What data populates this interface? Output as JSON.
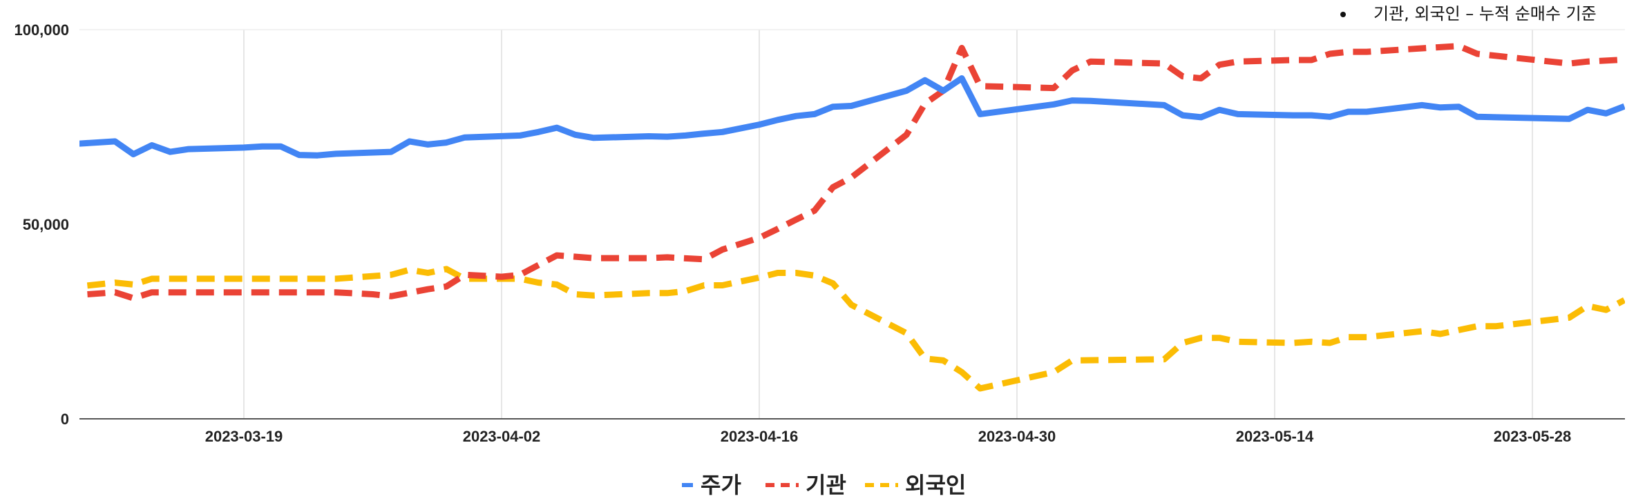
{
  "chart_data": {
    "type": "line",
    "annotation": "기관, 외국인 – 누적 순매수 기준",
    "ylim": [
      0,
      100000
    ],
    "yticks": [
      0,
      50000,
      100000
    ],
    "ytick_labels": [
      "0",
      "50,000",
      "100,000"
    ],
    "xlim": [
      "2023-03-09",
      "2023-06-01"
    ],
    "xticks": [
      "2023-03-19",
      "2023-04-02",
      "2023-04-16",
      "2023-04-30",
      "2023-05-14",
      "2023-05-28"
    ],
    "grid": "vertical",
    "legend_position": "bottom",
    "series": [
      {
        "name": "주가",
        "color": "#4285F4",
        "style": "solid",
        "points": [
          [
            "2023-03-09",
            70400
          ],
          [
            "2023-03-12",
            71300
          ],
          [
            "2023-03-13",
            68000
          ],
          [
            "2023-03-14",
            70300
          ],
          [
            "2023-03-15",
            68600
          ],
          [
            "2023-03-16",
            69300
          ],
          [
            "2023-03-19",
            69700
          ],
          [
            "2023-03-20",
            70000
          ],
          [
            "2023-03-21",
            70000
          ],
          [
            "2023-03-22",
            67800
          ],
          [
            "2023-03-23",
            67700
          ],
          [
            "2023-03-24",
            68100
          ],
          [
            "2023-03-27",
            68600
          ],
          [
            "2023-03-28",
            71300
          ],
          [
            "2023-03-29",
            70500
          ],
          [
            "2023-03-30",
            71000
          ],
          [
            "2023-03-31",
            72300
          ],
          [
            "2023-04-03",
            72800
          ],
          [
            "2023-04-04",
            73700
          ],
          [
            "2023-04-05",
            74800
          ],
          [
            "2023-04-06",
            73000
          ],
          [
            "2023-04-07",
            72200
          ],
          [
            "2023-04-10",
            72600
          ],
          [
            "2023-04-11",
            72500
          ],
          [
            "2023-04-12",
            72800
          ],
          [
            "2023-04-13",
            73300
          ],
          [
            "2023-04-14",
            73700
          ],
          [
            "2023-04-16",
            75600
          ],
          [
            "2023-04-17",
            76800
          ],
          [
            "2023-04-18",
            77800
          ],
          [
            "2023-04-19",
            78300
          ],
          [
            "2023-04-20",
            80200
          ],
          [
            "2023-04-21",
            80400
          ],
          [
            "2023-04-24",
            84300
          ],
          [
            "2023-04-25",
            87000
          ],
          [
            "2023-04-26",
            84300
          ],
          [
            "2023-04-27",
            87500
          ],
          [
            "2023-04-28",
            78300
          ],
          [
            "2023-05-02",
            80800
          ],
          [
            "2023-05-03",
            81800
          ],
          [
            "2023-05-04",
            81700
          ],
          [
            "2023-05-08",
            80600
          ],
          [
            "2023-05-09",
            78000
          ],
          [
            "2023-05-10",
            77500
          ],
          [
            "2023-05-11",
            79400
          ],
          [
            "2023-05-12",
            78300
          ],
          [
            "2023-05-15",
            78000
          ],
          [
            "2023-05-16",
            78000
          ],
          [
            "2023-05-17",
            77600
          ],
          [
            "2023-05-18",
            78900
          ],
          [
            "2023-05-19",
            78900
          ],
          [
            "2023-05-22",
            80600
          ],
          [
            "2023-05-23",
            80000
          ],
          [
            "2023-05-24",
            80200
          ],
          [
            "2023-05-25",
            77600
          ],
          [
            "2023-05-30",
            77100
          ],
          [
            "2023-05-31",
            79400
          ],
          [
            "2023-06-01",
            78500
          ],
          [
            "2023-06-02",
            80300
          ]
        ]
      },
      {
        "name": "기관",
        "color": "#EA4335",
        "style": "dashed",
        "points": [
          [
            "2023-03-09",
            31500
          ],
          [
            "2023-03-12",
            32500
          ],
          [
            "2023-03-13",
            31000
          ],
          [
            "2023-03-14",
            32500
          ],
          [
            "2023-03-19",
            32500
          ],
          [
            "2023-03-24",
            32500
          ],
          [
            "2023-03-26",
            32000
          ],
          [
            "2023-03-27",
            31500
          ],
          [
            "2023-03-29",
            33300
          ],
          [
            "2023-03-30",
            34000
          ],
          [
            "2023-03-31",
            37000
          ],
          [
            "2023-04-02",
            36500
          ],
          [
            "2023-04-03",
            37000
          ],
          [
            "2023-04-05",
            42000
          ],
          [
            "2023-04-07",
            41300
          ],
          [
            "2023-04-10",
            41300
          ],
          [
            "2023-04-11",
            41500
          ],
          [
            "2023-04-13",
            41000
          ],
          [
            "2023-04-14",
            43500
          ],
          [
            "2023-04-16",
            46500
          ],
          [
            "2023-04-17",
            48800
          ],
          [
            "2023-04-18",
            51200
          ],
          [
            "2023-04-19",
            53500
          ],
          [
            "2023-04-20",
            59500
          ],
          [
            "2023-04-21",
            62000
          ],
          [
            "2023-04-24",
            73000
          ],
          [
            "2023-04-25",
            81000
          ],
          [
            "2023-04-26",
            84300
          ],
          [
            "2023-04-27",
            95300
          ],
          [
            "2023-04-28",
            85500
          ],
          [
            "2023-05-02",
            85000
          ],
          [
            "2023-05-03",
            89500
          ],
          [
            "2023-05-04",
            91800
          ],
          [
            "2023-05-08",
            91300
          ],
          [
            "2023-05-09",
            88000
          ],
          [
            "2023-05-10",
            87500
          ],
          [
            "2023-05-11",
            91000
          ],
          [
            "2023-05-12",
            91800
          ],
          [
            "2023-05-15",
            92200
          ],
          [
            "2023-05-16",
            92200
          ],
          [
            "2023-05-17",
            93800
          ],
          [
            "2023-05-18",
            94300
          ],
          [
            "2023-05-19",
            94300
          ],
          [
            "2023-05-24",
            95800
          ],
          [
            "2023-05-25",
            93800
          ],
          [
            "2023-05-30",
            91300
          ],
          [
            "2023-05-31",
            91800
          ],
          [
            "2023-06-02",
            92300
          ]
        ]
      },
      {
        "name": "외국인",
        "color": "#FBBC04",
        "style": "dashed",
        "points": [
          [
            "2023-03-09",
            33500
          ],
          [
            "2023-03-12",
            35000
          ],
          [
            "2023-03-13",
            34500
          ],
          [
            "2023-03-14",
            36000
          ],
          [
            "2023-03-19",
            36000
          ],
          [
            "2023-03-24",
            36000
          ],
          [
            "2023-03-27",
            37000
          ],
          [
            "2023-03-28",
            38300
          ],
          [
            "2023-03-29",
            37500
          ],
          [
            "2023-03-30",
            38500
          ],
          [
            "2023-03-31",
            36000
          ],
          [
            "2023-04-03",
            36000
          ],
          [
            "2023-04-04",
            35000
          ],
          [
            "2023-04-05",
            34500
          ],
          [
            "2023-04-06",
            32000
          ],
          [
            "2023-04-07",
            31700
          ],
          [
            "2023-04-10",
            32300
          ],
          [
            "2023-04-11",
            32300
          ],
          [
            "2023-04-12",
            32800
          ],
          [
            "2023-04-13",
            34300
          ],
          [
            "2023-04-14",
            34300
          ],
          [
            "2023-04-16",
            36300
          ],
          [
            "2023-04-17",
            37500
          ],
          [
            "2023-04-18",
            37500
          ],
          [
            "2023-04-19",
            36800
          ],
          [
            "2023-04-20",
            34800
          ],
          [
            "2023-04-21",
            29300
          ],
          [
            "2023-04-24",
            22000
          ],
          [
            "2023-04-25",
            15500
          ],
          [
            "2023-04-26",
            15000
          ],
          [
            "2023-04-27",
            12000
          ],
          [
            "2023-04-28",
            7800
          ],
          [
            "2023-05-02",
            12000
          ],
          [
            "2023-05-03",
            15000
          ],
          [
            "2023-05-08",
            15300
          ],
          [
            "2023-05-09",
            19500
          ],
          [
            "2023-05-10",
            20800
          ],
          [
            "2023-05-11",
            20800
          ],
          [
            "2023-05-12",
            19800
          ],
          [
            "2023-05-15",
            19500
          ],
          [
            "2023-05-16",
            19800
          ],
          [
            "2023-05-17",
            19500
          ],
          [
            "2023-05-18",
            21000
          ],
          [
            "2023-05-19",
            21000
          ],
          [
            "2023-05-22",
            22500
          ],
          [
            "2023-05-23",
            21800
          ],
          [
            "2023-05-24",
            22800
          ],
          [
            "2023-05-25",
            23800
          ],
          [
            "2023-05-26",
            23800
          ],
          [
            "2023-05-30",
            26000
          ],
          [
            "2023-05-31",
            29000
          ],
          [
            "2023-06-01",
            28000
          ],
          [
            "2023-06-02",
            30500
          ]
        ]
      }
    ]
  }
}
